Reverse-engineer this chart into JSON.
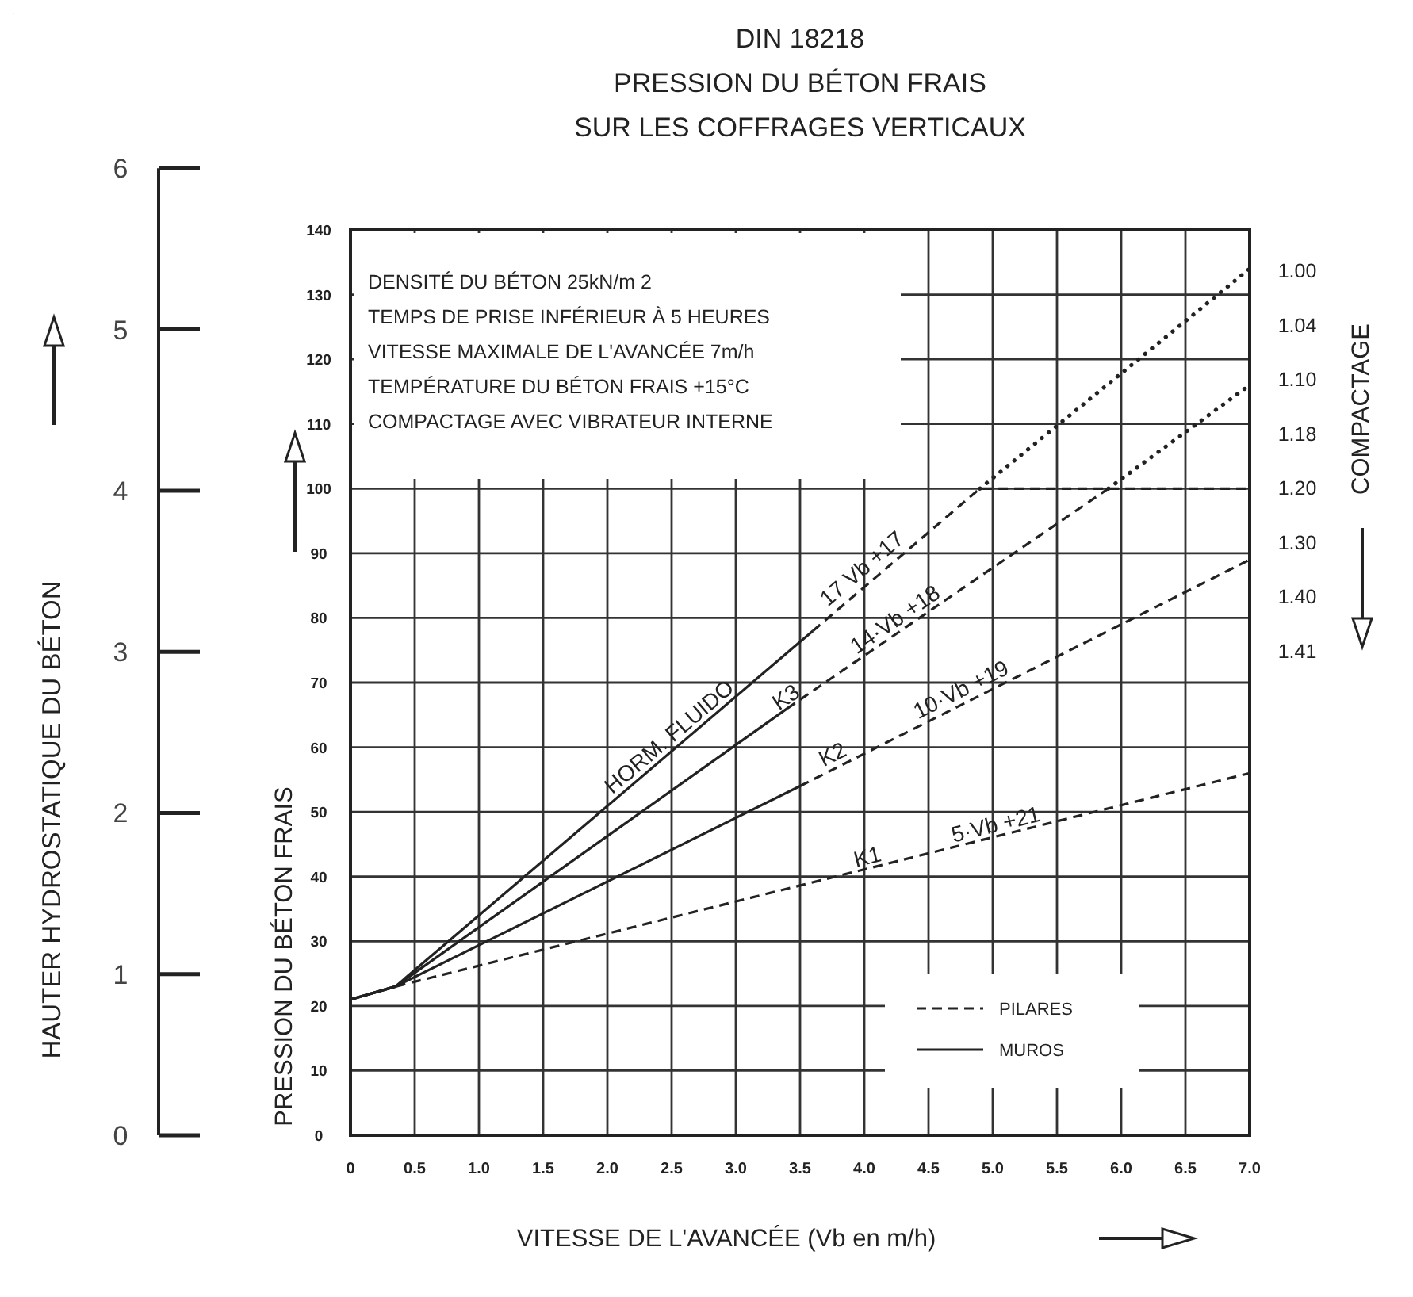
{
  "chart_data": {
    "type": "line",
    "title": "DIN 18218\nPRESSION DU BÉTON FRAIS\nSUR LES COFFRAGES VERTICAUX",
    "xlabel": "VITESSE DE L'AVANCÉE   (Vb en m/h)",
    "ylabel": "PRESSION DU BÉTON FRAIS",
    "y2label": "COMPACTAGE",
    "y3label": "HAUTER HYDROSTATIQUE DU BÉTON",
    "xlim": [
      0,
      7
    ],
    "xticks": [
      0,
      0.5,
      {
        "value": 1,
        "label": "1.0"
      },
      1.5,
      {
        "value": 2,
        "label": "2.0"
      },
      2.5,
      {
        "value": 3,
        "label": "3.0"
      },
      3.5,
      {
        "value": 4,
        "label": "4.0"
      },
      4.5,
      {
        "value": 5,
        "label": "5.0"
      },
      5.5,
      {
        "value": 6,
        "label": "6.0"
      },
      6.5,
      {
        "value": 7,
        "label": "7.0"
      }
    ],
    "ylim": [
      0,
      140
    ],
    "yticks": [
      0,
      10,
      20,
      30,
      40,
      50,
      60,
      70,
      80,
      90,
      100,
      110,
      120,
      130,
      140
    ],
    "y3lim": [
      0,
      6
    ],
    "y3ticks": [
      0,
      1,
      2,
      3,
      4,
      5,
      6
    ],
    "grid": true,
    "legend": "bottom right",
    "series": [
      {
        "name": "PILARES",
        "color": "#222222",
        "line_style": "dashed",
        "x": [
          3.6,
          4.9,
          7
        ],
        "values": [
          78,
          100,
          100
        ]
      },
      {
        "name": "MUROS",
        "color": "#222222",
        "line_style": "solid",
        "x": [
          0,
          0.35,
          3.6
        ],
        "values": [
          21,
          23,
          78
        ]
      },
      {
        "color": "#222222",
        "line_style": "dotted",
        "x": [
          4.9,
          7
        ],
        "values": [
          100,
          134
        ]
      },
      {
        "color": "#222222",
        "line_style": "solid",
        "x": [
          0,
          0.35,
          3.4
        ],
        "values": [
          21,
          23,
          66
        ]
      },
      {
        "color": "#222222",
        "line_style": "dashed",
        "x": [
          3.4,
          5.9
        ],
        "values": [
          66,
          100
        ]
      },
      {
        "color": "#222222",
        "line_style": "dotted",
        "x": [
          5.9,
          7
        ],
        "values": [
          100,
          116
        ]
      },
      {
        "color": "#222222",
        "line_style": "solid",
        "x": [
          0,
          0.35,
          3.5
        ],
        "values": [
          21,
          23,
          54
        ]
      },
      {
        "color": "#222222",
        "line_style": "dashed",
        "x": [
          3.5,
          7
        ],
        "values": [
          54,
          89
        ]
      },
      {
        "color": "#222222",
        "line_style": "dashed",
        "x": [
          0,
          0.35,
          7
        ],
        "values": [
          21,
          23,
          56
        ]
      }
    ],
    "annotations": [
      "DENSITÉ DU BÉTON 25kN/m 2\nTEMPS DE PRISE INFÉRIEUR À 5 HEURES\nVITESSE MAXIMALE DE L'AVANCÉE 7m/h\nTEMPÉRATURE DU BÉTON FRAIS +15°C\nCOMPACTAGE AVEC VIBRATEUR INTERNE",
      "1.00",
      "1.04",
      "1.10",
      "1.18",
      "1.20",
      "1.30",
      "1.40",
      "1.41",
      {
        "text": "HORM. FLUIDO",
        "x": 2.55,
        "y": 60
      },
      {
        "text": "17 Vb +17",
        "x": 4.05,
        "y": 86
      },
      {
        "text": "K3",
        "x": 3.45,
        "y": 66
      },
      {
        "text": "14·Vb +18",
        "x": 4.3,
        "y": 78
      },
      {
        "text": "K2",
        "x": 3.8,
        "y": 57
      },
      {
        "text": "10·Vb +19",
        "x": 4.8,
        "y": 67
      },
      {
        "text": "K1",
        "x": 4.05,
        "y": 41
      },
      {
        "text": "5·Vb +21",
        "x": 5.05,
        "y": 46
      }
    ]
  }
}
